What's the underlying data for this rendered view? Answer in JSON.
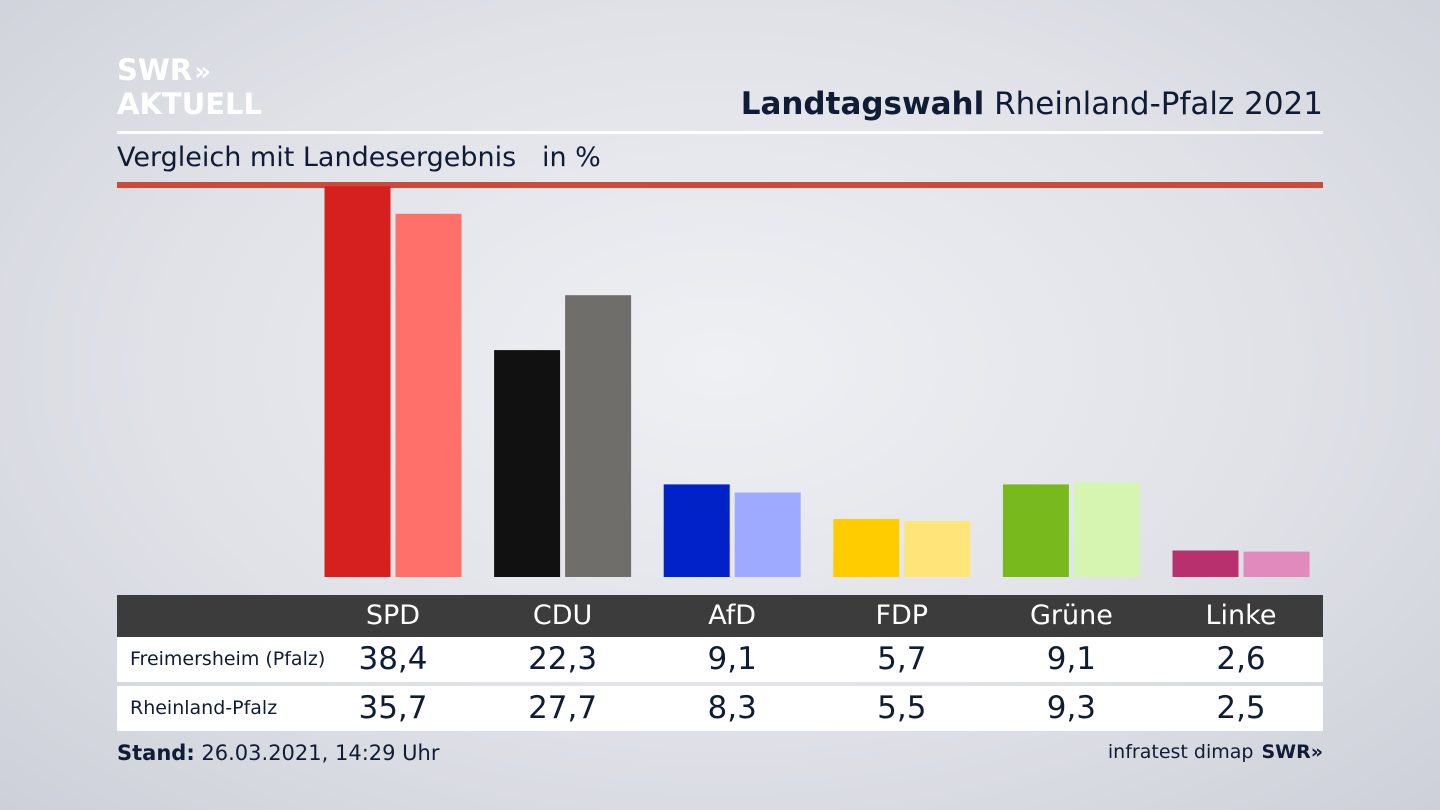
{
  "logo": {
    "line1": "SWR",
    "chevrons": "»",
    "line2": "AKTUELL"
  },
  "header": {
    "title_bold": "Landtagswahl",
    "title_rest": " Rheinland-Pfalz 2021"
  },
  "subtitle": "Vergleich mit Landesergebnis   in %",
  "footer": {
    "stand_label": "Stand:",
    "stand_value": " 26.03.2021, 14:29 Uhr",
    "source": "infratest dimap",
    "source_logo": "SWR»"
  },
  "chart_data": {
    "type": "bar",
    "categories": [
      "SPD",
      "CDU",
      "AfD",
      "FDP",
      "Grüne",
      "Linke"
    ],
    "series": [
      {
        "name": "Freimersheim (Pfalz)",
        "values": [
          38.4,
          22.3,
          9.1,
          5.7,
          9.1,
          2.6
        ],
        "labels": [
          "38,4",
          "22,3",
          "9,1",
          "5,7",
          "9,1",
          "2,6"
        ],
        "colors": [
          "#d62020",
          "#111111",
          "#0022c8",
          "#ffcc00",
          "#78b91e",
          "#b8306e"
        ]
      },
      {
        "name": "Rheinland-Pfalz",
        "values": [
          35.7,
          27.7,
          8.3,
          5.5,
          9.3,
          2.5
        ],
        "labels": [
          "35,7",
          "27,7",
          "8,3",
          "5,5",
          "9,3",
          "2,5"
        ],
        "colors": [
          "#ff706a",
          "#706e6b",
          "#9eaaff",
          "#ffe47a",
          "#d5f5b0",
          "#e08bbb"
        ]
      }
    ],
    "ylim": [
      0,
      40
    ],
    "grid": false,
    "legend": "table below chart"
  }
}
